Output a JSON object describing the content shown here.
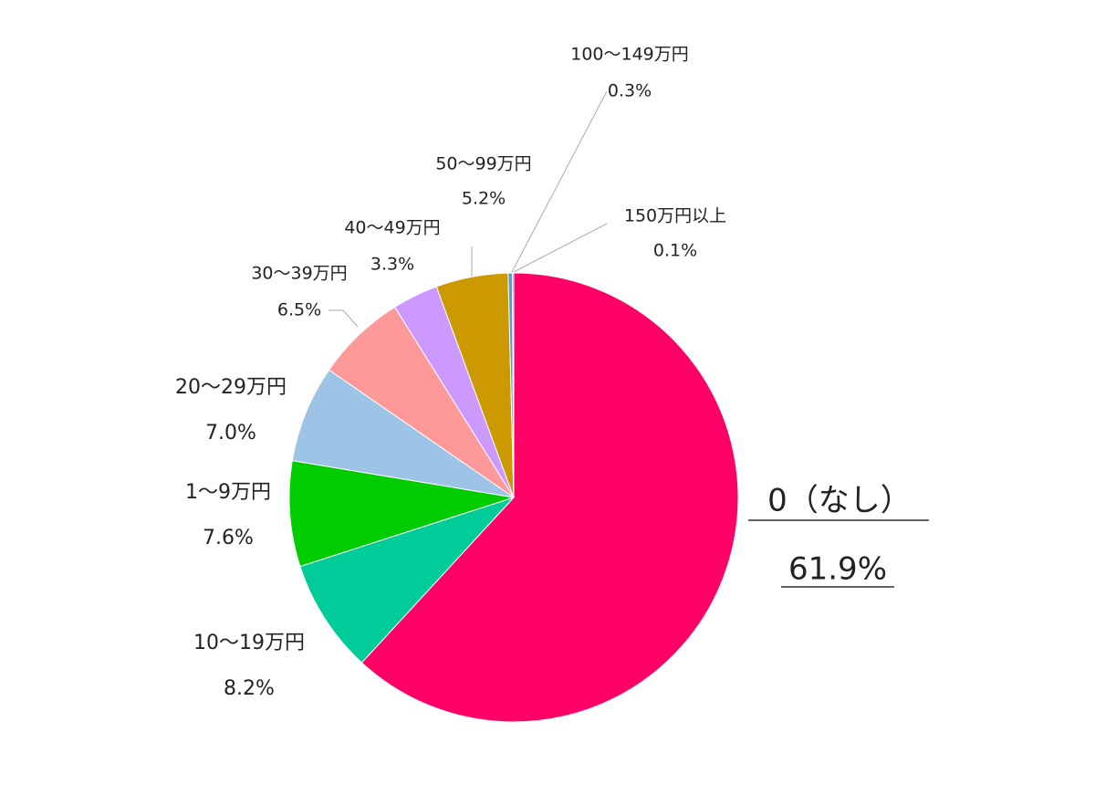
{
  "chart_data": {
    "type": "pie",
    "categories": [
      "0（なし）",
      "10～19万円",
      "1～9万円",
      "20～29万円",
      "30～39万円",
      "40～49万円",
      "50～99万円",
      "100～149万円",
      "150万円以上"
    ],
    "values": [
      61.9,
      8.2,
      7.6,
      7.0,
      6.5,
      3.3,
      5.2,
      0.3,
      0.1
    ],
    "value_labels": [
      "61.9%",
      "8.2%",
      "7.6%",
      "7.0%",
      "6.5%",
      "3.3%",
      "5.2%",
      "0.3%",
      "0.1%"
    ],
    "colors": [
      "#ff0066",
      "#00cc99",
      "#00cc00",
      "#9dc3e6",
      "#ff9999",
      "#cc99ff",
      "#cc9900",
      "#5b9bd5",
      "#7f7f7f"
    ]
  }
}
